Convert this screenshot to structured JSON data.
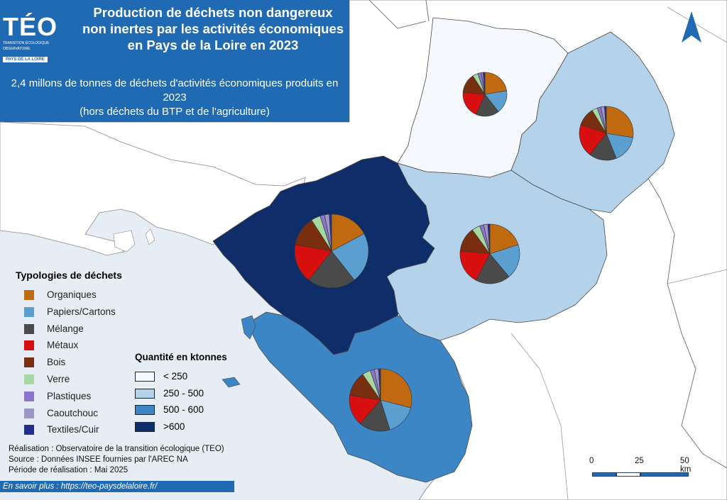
{
  "title": "Production de déchets non dangereux non inertes par les activités économiques en Pays de la Loire en 2023",
  "subtitle": "2,4 millons de tonnes de déchets d'activités économiques produits en 2023\n(hors déchets du BTP et de l'agriculture)",
  "logo": {
    "name": "TÉO",
    "sub1": "TRANSITION ÉCOLOGIQUE",
    "sub2": "OBSERVATOIRE",
    "badge": "PAYS DE LA LOIRE"
  },
  "colors": {
    "sea": "#e6edf5",
    "land": "#ffffff",
    "class1": "#f5f8fd",
    "class2": "#b4d2ea",
    "class3": "#3d86c6",
    "class4": "#0f2d68",
    "accent": "#1f6ab3"
  },
  "waste_legend": {
    "title": "Typologies de déchets",
    "items": [
      {
        "label": "Organiques",
        "color": "#c06a10"
      },
      {
        "label": "Papiers/Cartons",
        "color": "#5b9fd1"
      },
      {
        "label": "Mélange",
        "color": "#4a4a4a"
      },
      {
        "label": "Métaux",
        "color": "#d80f0f"
      },
      {
        "label": "Bois",
        "color": "#7a2e10"
      },
      {
        "label": "Verre",
        "color": "#a6d9a0"
      },
      {
        "label": "Plastiques",
        "color": "#8a74cc"
      },
      {
        "label": "Caoutchouc",
        "color": "#9c95c6"
      },
      {
        "label": "Textiles/Cuir",
        "color": "#232f8c"
      }
    ]
  },
  "quantity_legend": {
    "title": "Quantité en ktonnes",
    "classes": [
      {
        "label": "< 250",
        "color": "#f5f8fd"
      },
      {
        "label": "250 - 500",
        "color": "#b4d2ea"
      },
      {
        "label": "500 - 600",
        "color": "#3d86c6"
      },
      {
        "label": ">600",
        "color": "#0f2d68"
      }
    ]
  },
  "departments": [
    {
      "id": "mayenne",
      "class": 0,
      "shares": [
        17,
        13,
        13,
        15,
        11,
        3,
        2,
        1,
        1
      ]
    },
    {
      "id": "sarthe",
      "class": 1,
      "shares": [
        25,
        15,
        15,
        18,
        10,
        3,
        2,
        2,
        1
      ]
    },
    {
      "id": "maine-et-loire",
      "class": 1,
      "shares": [
        18,
        17,
        17,
        17,
        12,
        4,
        2,
        2,
        1
      ]
    },
    {
      "id": "loire-atlantique",
      "class": 3,
      "shares": [
        17,
        22,
        21,
        17,
        13,
        4,
        2,
        2,
        1
      ]
    },
    {
      "id": "vendee",
      "class": 2,
      "shares": [
        27,
        15,
        15,
        15,
        12,
        4,
        2,
        2,
        1
      ]
    }
  ],
  "credits": {
    "line1": "Réalisation : Observatoire de la transition écologique (TEO)",
    "line2": "Source : Données INSEE fournies par l'AREC NA",
    "line3": "Période de réalisation : Mai 2025"
  },
  "more": "En savoir plus : https://teo-paysdelaloire.fr/",
  "scale": {
    "t0": "0",
    "t1": "25",
    "t2": "50 km"
  }
}
